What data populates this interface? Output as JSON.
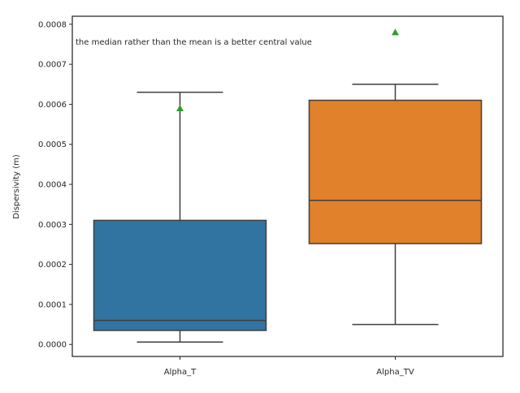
{
  "chart_data": {
    "type": "box",
    "title": "",
    "xlabel": "",
    "ylabel": "Dispersivity (m)",
    "ylim": [
      -3e-05,
      0.00082
    ],
    "yticks": [
      0.0,
      0.0001,
      0.0002,
      0.0003,
      0.0004,
      0.0005,
      0.0006,
      0.0007,
      0.0008
    ],
    "ytick_labels": [
      "0.0000",
      "0.0001",
      "0.0002",
      "0.0003",
      "0.0004",
      "0.0005",
      "0.0006",
      "0.0007",
      "0.0008"
    ],
    "categories": [
      "Alpha_T",
      "Alpha_TV"
    ],
    "boxes": [
      {
        "category": "Alpha_T",
        "whisker_low": 6e-06,
        "q1": 3.5e-05,
        "median": 6e-05,
        "q3": 0.00031,
        "whisker_high": 0.00063,
        "mean": 0.00059,
        "color": "#3274a1"
      },
      {
        "category": "Alpha_TV",
        "whisker_low": 5e-05,
        "q1": 0.000252,
        "median": 0.00036,
        "q3": 0.00061,
        "whisker_high": 0.00065,
        "mean": 0.00078,
        "color": "#e1812c"
      }
    ],
    "annotation": "the median rather than the mean is a better central value",
    "grid": false,
    "mean_marker_color": "#2ca02c",
    "line_color": "#3f3f3f",
    "axes_color": "#262626"
  }
}
